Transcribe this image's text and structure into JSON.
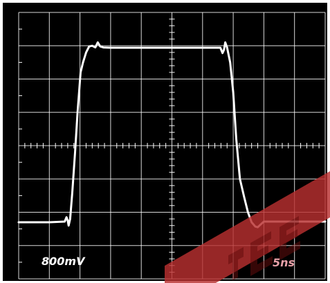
{
  "chart_data": {
    "type": "line",
    "title": "",
    "xlabel": "",
    "ylabel": "",
    "grid": true,
    "xlim": [
      0,
      10
    ],
    "ylim": [
      -4,
      4
    ],
    "x_divisions": 10,
    "y_divisions": 8,
    "minor_ticks_per_division": 5,
    "colors": {
      "background": "#000000",
      "grid": "#ffffff",
      "trace": "#ffffff",
      "scale_text": "#ffffff",
      "time_text": "#e8a0a8",
      "watermark": "#d23a3a"
    },
    "series": [
      {
        "x": [
          0,
          1.0,
          1.5,
          1.56,
          1.6,
          1.63,
          1.68,
          1.75,
          1.84,
          1.92,
          2.02,
          2.1,
          2.2,
          2.3,
          2.4,
          2.5,
          2.58,
          2.66,
          2.76,
          3.0,
          5.0,
          6.5,
          6.58,
          6.62,
          6.65,
          6.7,
          6.74,
          6.8,
          6.9,
          7.0,
          7.1,
          7.22,
          7.36,
          7.48,
          7.6,
          7.72,
          7.8,
          7.88,
          8.0,
          9.0,
          10
        ],
        "y": [
          -2.3,
          -2.3,
          -2.28,
          -2.15,
          -2.25,
          -2.4,
          -2.2,
          -1.4,
          -0.2,
          1.0,
          2.2,
          2.5,
          2.8,
          2.98,
          3.0,
          2.95,
          3.1,
          2.98,
          2.95,
          2.94,
          2.94,
          2.94,
          2.94,
          2.85,
          2.78,
          2.88,
          3.1,
          2.95,
          2.5,
          1.6,
          0.2,
          -1.0,
          -1.55,
          -2.0,
          -2.3,
          -2.43,
          -2.45,
          -2.38,
          -2.28,
          -2.28,
          -2.28
        ]
      }
    ],
    "annotations": {
      "volts_per_div": "800mV",
      "time_per_div": "5ns"
    }
  }
}
